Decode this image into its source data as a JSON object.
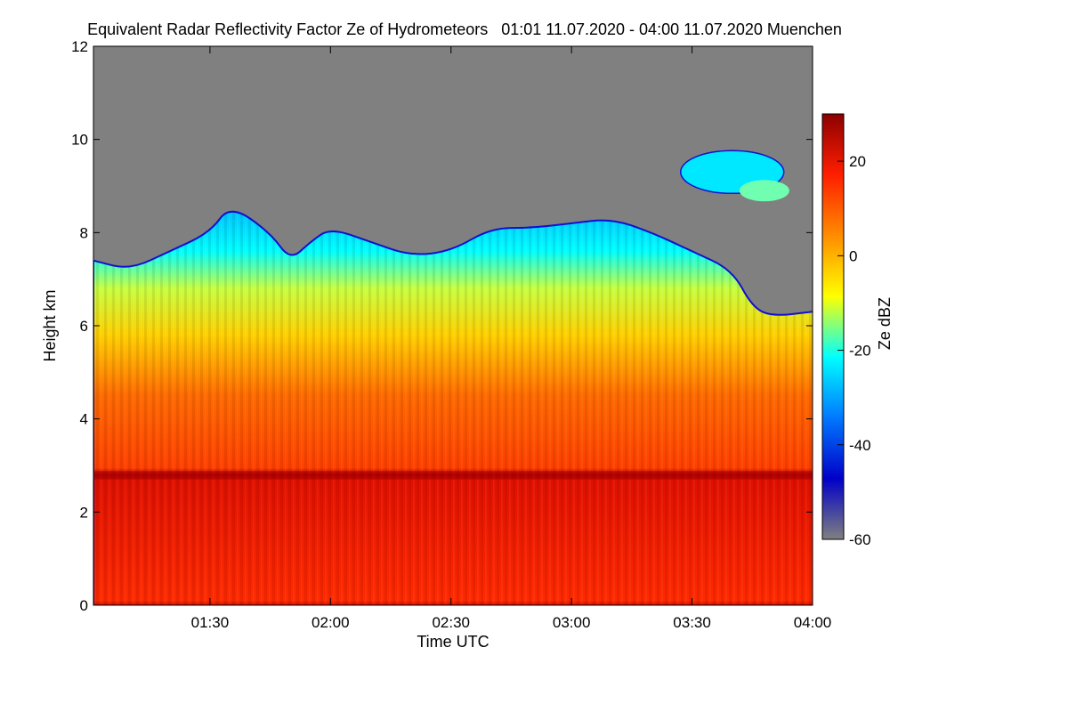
{
  "chart_data": {
    "type": "heatmap",
    "title": "Equivalent Radar Reflectivity Factor Ze of Hydrometeors   01:01 11.07.2020 - 04:00 11.07.2020 Muenchen",
    "xlabel": "Time UTC",
    "ylabel": "Height km",
    "colorbar_label": "Ze dBZ",
    "x_range": [
      "01:01",
      "04:00"
    ],
    "x_ticks": [
      "01:30",
      "02:00",
      "02:30",
      "03:00",
      "03:30",
      "04:00"
    ],
    "ylim": [
      0,
      12
    ],
    "y_ticks": [
      "0",
      "2",
      "4",
      "6",
      "8",
      "10",
      "12"
    ],
    "colorbar_range": [
      -60,
      30
    ],
    "colorbar_ticks": [
      "20",
      "0",
      "-20",
      "-40",
      "-60"
    ],
    "colormap": [
      "#808080",
      "#0000c8",
      "#0078ff",
      "#00ffff",
      "#ffff00",
      "#ff8c00",
      "#ff1e00",
      "#8c0000"
    ],
    "no_signal_color": "#808080",
    "echo_top_km": [
      {
        "t": "01:01",
        "top": 7.4
      },
      {
        "t": "01:10",
        "top": 7.2
      },
      {
        "t": "01:20",
        "top": 7.6
      },
      {
        "t": "01:30",
        "top": 8.0
      },
      {
        "t": "01:35",
        "top": 8.6
      },
      {
        "t": "01:45",
        "top": 8.0
      },
      {
        "t": "01:50",
        "top": 7.4
      },
      {
        "t": "01:55",
        "top": 7.8
      },
      {
        "t": "02:00",
        "top": 8.1
      },
      {
        "t": "02:10",
        "top": 7.8
      },
      {
        "t": "02:20",
        "top": 7.5
      },
      {
        "t": "02:30",
        "top": 7.6
      },
      {
        "t": "02:40",
        "top": 8.1
      },
      {
        "t": "02:50",
        "top": 8.1
      },
      {
        "t": "03:00",
        "top": 8.2
      },
      {
        "t": "03:10",
        "top": 8.3
      },
      {
        "t": "03:20",
        "top": 8.0
      },
      {
        "t": "03:30",
        "top": 7.6
      },
      {
        "t": "03:40",
        "top": 7.2
      },
      {
        "t": "03:45",
        "top": 6.4
      },
      {
        "t": "03:50",
        "top": 6.2
      },
      {
        "t": "04:00",
        "top": 6.3
      }
    ],
    "melting_layer_km": 2.8
  }
}
